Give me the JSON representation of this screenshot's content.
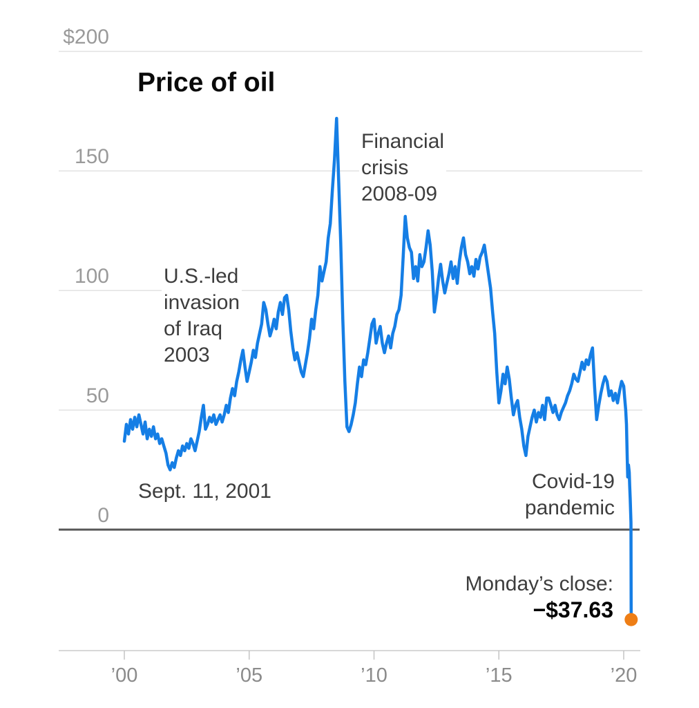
{
  "title": "Price of oil",
  "chart_data": {
    "type": "line",
    "title": "Price of oil",
    "series_name": "Oil price (dollars per barrel)",
    "x_start_year": 2000,
    "x_interval_months": 1,
    "monthly_values": [
      37,
      44,
      40,
      46,
      42,
      47,
      43,
      48,
      44,
      40,
      45,
      38,
      42,
      39,
      43,
      38,
      40,
      36,
      38,
      35,
      32,
      27,
      25,
      28,
      26,
      30,
      33,
      31,
      35,
      33,
      36,
      34,
      38,
      36,
      33,
      37,
      41,
      47,
      52,
      42,
      44,
      47,
      45,
      48,
      44,
      46,
      48,
      45,
      48,
      52,
      49,
      55,
      59,
      56,
      62,
      66,
      71,
      75,
      68,
      62,
      66,
      70,
      75,
      72,
      78,
      82,
      86,
      95,
      92,
      86,
      81,
      84,
      88,
      84,
      91,
      95,
      90,
      97,
      98,
      92,
      83,
      76,
      71,
      74,
      70,
      66,
      64,
      69,
      74,
      80,
      88,
      84,
      92,
      98,
      110,
      104,
      108,
      112,
      122,
      128,
      142,
      155,
      172,
      146,
      120,
      88,
      62,
      43,
      41,
      44,
      48,
      53,
      61,
      68,
      64,
      71,
      69,
      74,
      80,
      86,
      88,
      78,
      82,
      85,
      78,
      74,
      78,
      81,
      76,
      82,
      85,
      90,
      92,
      98,
      114,
      131,
      122,
      118,
      116,
      105,
      110,
      104,
      115,
      110,
      112,
      118,
      125,
      119,
      108,
      91,
      97,
      105,
      111,
      104,
      99,
      103,
      107,
      112,
      105,
      110,
      103,
      112,
      118,
      122,
      115,
      112,
      107,
      110,
      106,
      113,
      109,
      114,
      116,
      119,
      113,
      107,
      101,
      91,
      82,
      66,
      53,
      58,
      65,
      61,
      68,
      63,
      55,
      48,
      52,
      54,
      47,
      42,
      35,
      31,
      39,
      43,
      47,
      50,
      45,
      49,
      47,
      52,
      46,
      55,
      55,
      52,
      49,
      52,
      48,
      46,
      49,
      51,
      53,
      56,
      58,
      61,
      65,
      63,
      62,
      66,
      70,
      67,
      71,
      69,
      73,
      76,
      60,
      46,
      52,
      57,
      61,
      64,
      62,
      56,
      58,
      54,
      57,
      53,
      58,
      62
    ],
    "plunge_2020": [
      [
        2020.0,
        60
      ],
      [
        2020.04,
        55
      ],
      [
        2020.08,
        50
      ],
      [
        2020.11,
        44
      ],
      [
        2020.14,
        30
      ],
      [
        2020.16,
        22
      ],
      [
        2020.19,
        27
      ],
      [
        2020.22,
        24
      ],
      [
        2020.24,
        18
      ],
      [
        2020.26,
        13
      ],
      [
        2020.29,
        3
      ],
      [
        2020.3,
        -37.63
      ]
    ],
    "endpoint": {
      "year": 2020.3,
      "value": -37.63
    },
    "y_gridlines": [
      0,
      50,
      100,
      150,
      200
    ],
    "y_axis_labels": [
      "0",
      "50",
      "100",
      "150",
      "$200"
    ],
    "x_tick_years": [
      2000,
      2005,
      2010,
      2015,
      2020
    ],
    "x_tick_labels": [
      "’00",
      "’05",
      "’10",
      "’15",
      "’20"
    ],
    "ylim": [
      -50,
      210
    ],
    "xlim": [
      1999.9,
      2021
    ],
    "grid": "horizontal-only",
    "legend": "none"
  },
  "annotations": {
    "financial_crisis": [
      "Financial",
      "crisis",
      "2008-09"
    ],
    "iraq": [
      "U.S.-led",
      "invasion",
      "of Iraq",
      "2003"
    ],
    "sept11": "Sept. 11, 2001",
    "covid": [
      "Covid-19",
      "pandemic"
    ],
    "monday_close_label": "Monday’s close:",
    "monday_close_value": "−$37.63"
  },
  "colors": {
    "line": "#157EE5",
    "endpoint_dot": "#EE7E16",
    "gridline": "#E2E2E2",
    "zero_line": "#575757",
    "x_axis_line": "#CBCBCB",
    "tick": "#C4C4C4",
    "y_label": "#9A9A9A",
    "x_label": "#8B8B8B",
    "annotation_text": "#3D3D3D",
    "title_text": "#0A0A0A"
  }
}
